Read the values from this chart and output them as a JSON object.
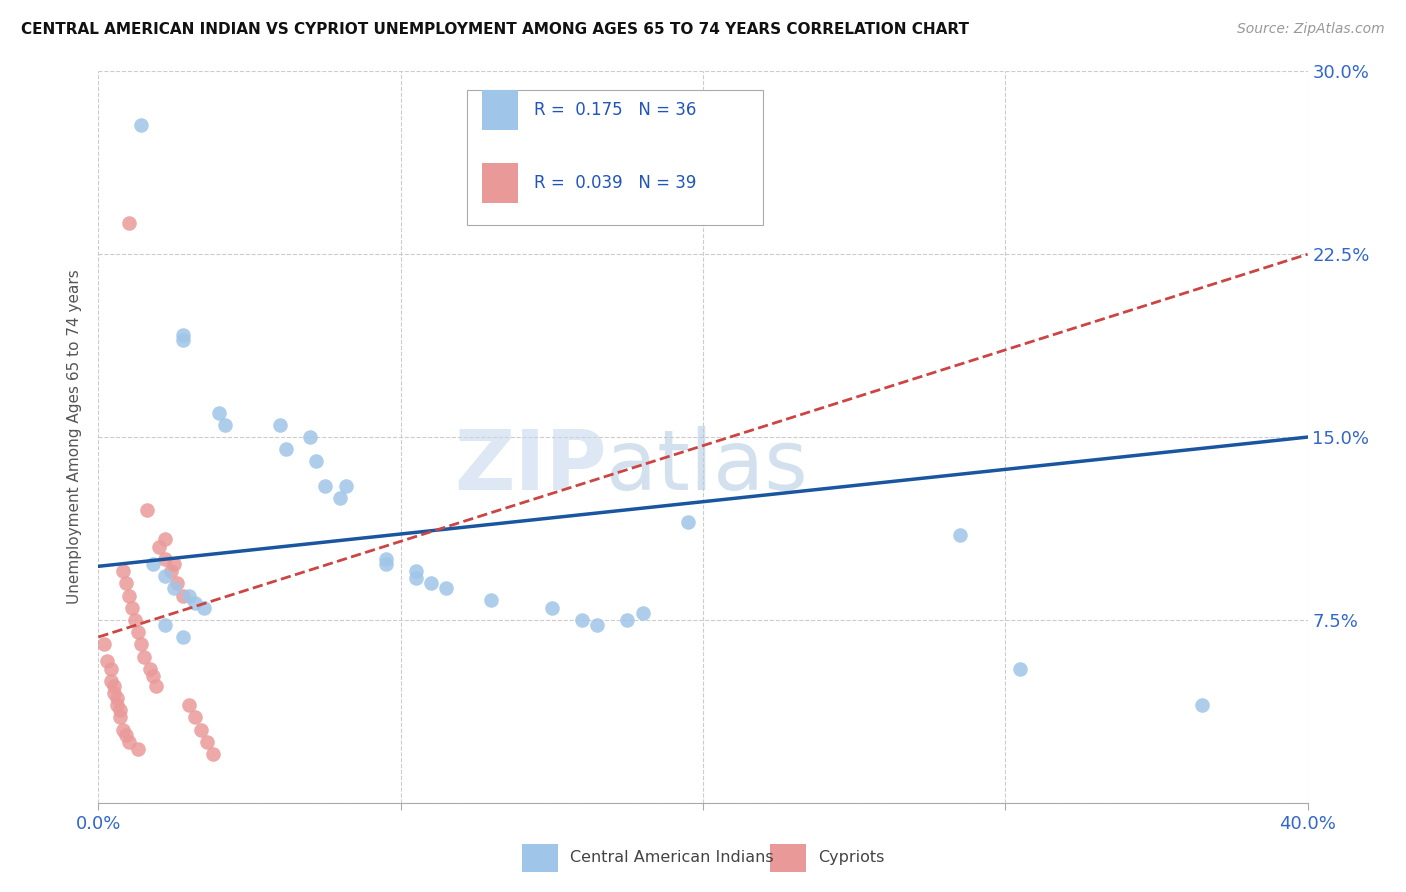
{
  "title": "CENTRAL AMERICAN INDIAN VS CYPRIOT UNEMPLOYMENT AMONG AGES 65 TO 74 YEARS CORRELATION CHART",
  "source": "Source: ZipAtlas.com",
  "ylabel_label": "Unemployment Among Ages 65 to 74 years",
  "legend_label1": "Central American Indians",
  "legend_label2": "Cypriots",
  "R1": 0.175,
  "N1": 36,
  "R2": 0.039,
  "N2": 39,
  "xlim": [
    0.0,
    0.4
  ],
  "ylim": [
    0.0,
    0.3
  ],
  "xticks": [
    0.0,
    0.1,
    0.2,
    0.3,
    0.4
  ],
  "xtick_labels": [
    "0.0%",
    "",
    "",
    "",
    "40.0%"
  ],
  "yticks": [
    0.0,
    0.075,
    0.15,
    0.225,
    0.3
  ],
  "ytick_labels": [
    "",
    "7.5%",
    "15.0%",
    "22.5%",
    "30.0%"
  ],
  "color_blue": "#9fc5e8",
  "color_pink": "#ea9999",
  "trendline_blue": "#1a56a0",
  "trendline_pink": "#cc4444",
  "blue_points_x": [
    0.014,
    0.028,
    0.028,
    0.04,
    0.042,
    0.06,
    0.062,
    0.07,
    0.072,
    0.075,
    0.08,
    0.082,
    0.095,
    0.095,
    0.105,
    0.105,
    0.11,
    0.115,
    0.13,
    0.15,
    0.16,
    0.165,
    0.175,
    0.18,
    0.018,
    0.022,
    0.025,
    0.03,
    0.032,
    0.035,
    0.195,
    0.285,
    0.305,
    0.365,
    0.022,
    0.028
  ],
  "blue_points_y": [
    0.278,
    0.192,
    0.19,
    0.16,
    0.155,
    0.155,
    0.145,
    0.15,
    0.14,
    0.13,
    0.125,
    0.13,
    0.1,
    0.098,
    0.095,
    0.092,
    0.09,
    0.088,
    0.083,
    0.08,
    0.075,
    0.073,
    0.075,
    0.078,
    0.098,
    0.093,
    0.088,
    0.085,
    0.082,
    0.08,
    0.115,
    0.11,
    0.055,
    0.04,
    0.073,
    0.068
  ],
  "pink_points_x": [
    0.002,
    0.003,
    0.004,
    0.004,
    0.005,
    0.005,
    0.006,
    0.006,
    0.007,
    0.007,
    0.008,
    0.008,
    0.009,
    0.009,
    0.01,
    0.01,
    0.011,
    0.012,
    0.013,
    0.013,
    0.014,
    0.015,
    0.016,
    0.017,
    0.018,
    0.019,
    0.02,
    0.022,
    0.024,
    0.026,
    0.028,
    0.03,
    0.032,
    0.034,
    0.036,
    0.038,
    0.022,
    0.025,
    0.01
  ],
  "pink_points_y": [
    0.065,
    0.058,
    0.055,
    0.05,
    0.048,
    0.045,
    0.043,
    0.04,
    0.038,
    0.035,
    0.095,
    0.03,
    0.09,
    0.028,
    0.085,
    0.025,
    0.08,
    0.075,
    0.07,
    0.022,
    0.065,
    0.06,
    0.12,
    0.055,
    0.052,
    0.048,
    0.105,
    0.1,
    0.095,
    0.09,
    0.085,
    0.04,
    0.035,
    0.03,
    0.025,
    0.02,
    0.108,
    0.098,
    0.238
  ]
}
